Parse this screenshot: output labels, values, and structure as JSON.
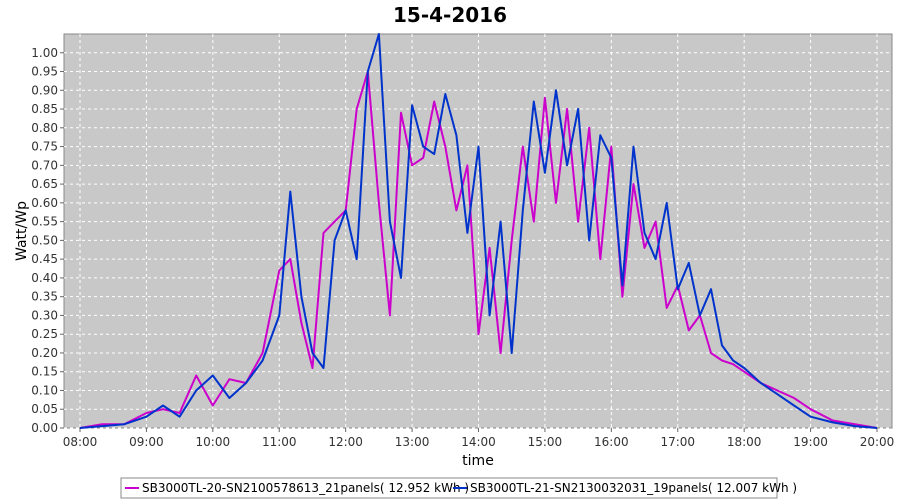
{
  "chart_data": {
    "type": "line",
    "title": "15-4-2016",
    "xlabel": "time",
    "ylabel": "Watt/Wp",
    "xlim": [
      "08:00",
      "20:00"
    ],
    "ylim": [
      0.0,
      1.05
    ],
    "x_ticks": [
      "08:00",
      "09:00",
      "10:00",
      "11:00",
      "12:00",
      "13:00",
      "14:00",
      "15:00",
      "16:00",
      "17:00",
      "18:00",
      "19:00",
      "20:00"
    ],
    "y_ticks": [
      "0.00",
      "0.05",
      "0.10",
      "0.15",
      "0.20",
      "0.25",
      "0.30",
      "0.35",
      "0.40",
      "0.45",
      "0.50",
      "0.55",
      "0.60",
      "0.65",
      "0.70",
      "0.75",
      "0.80",
      "0.85",
      "0.90",
      "0.95",
      "1.00"
    ],
    "grid": true,
    "legend_position": "bottom",
    "x": [
      "08:00",
      "08:20",
      "08:40",
      "09:00",
      "09:15",
      "09:30",
      "09:45",
      "10:00",
      "10:15",
      "10:30",
      "10:45",
      "11:00",
      "11:10",
      "11:20",
      "11:30",
      "11:40",
      "11:50",
      "12:00",
      "12:10",
      "12:20",
      "12:30",
      "12:40",
      "12:50",
      "13:00",
      "13:10",
      "13:20",
      "13:30",
      "13:40",
      "13:50",
      "14:00",
      "14:10",
      "14:20",
      "14:30",
      "14:40",
      "14:50",
      "15:00",
      "15:10",
      "15:20",
      "15:30",
      "15:40",
      "15:50",
      "16:00",
      "16:10",
      "16:20",
      "16:30",
      "16:40",
      "16:50",
      "17:00",
      "17:10",
      "17:20",
      "17:30",
      "17:40",
      "17:50",
      "18:00",
      "18:15",
      "18:30",
      "18:45",
      "19:00",
      "19:20",
      "19:40",
      "20:00"
    ],
    "series": [
      {
        "name": "SB3000TL-20-SN2100578613_21panels( 12.952 kWh )",
        "color": "#cc00cc",
        "values": [
          0.0,
          0.01,
          0.01,
          0.04,
          0.05,
          0.04,
          0.14,
          0.06,
          0.13,
          0.12,
          0.2,
          0.42,
          0.45,
          0.28,
          0.16,
          0.52,
          0.55,
          0.58,
          0.85,
          0.95,
          0.6,
          0.3,
          0.84,
          0.7,
          0.72,
          0.87,
          0.75,
          0.58,
          0.7,
          0.25,
          0.48,
          0.2,
          0.5,
          0.75,
          0.55,
          0.88,
          0.6,
          0.85,
          0.55,
          0.8,
          0.45,
          0.75,
          0.35,
          0.65,
          0.48,
          0.55,
          0.32,
          0.38,
          0.26,
          0.3,
          0.2,
          0.18,
          0.17,
          0.15,
          0.12,
          0.1,
          0.08,
          0.05,
          0.02,
          0.01,
          0.0
        ]
      },
      {
        "name": "SB3000TL-21-SN2130032031_19panels( 12.007 kWh )",
        "color": "#0033cc",
        "values": [
          0.0,
          0.005,
          0.01,
          0.03,
          0.06,
          0.03,
          0.1,
          0.14,
          0.08,
          0.12,
          0.18,
          0.3,
          0.63,
          0.35,
          0.2,
          0.16,
          0.5,
          0.58,
          0.45,
          0.95,
          1.05,
          0.55,
          0.4,
          0.86,
          0.75,
          0.73,
          0.89,
          0.78,
          0.52,
          0.75,
          0.3,
          0.55,
          0.2,
          0.58,
          0.87,
          0.68,
          0.9,
          0.7,
          0.85,
          0.5,
          0.78,
          0.72,
          0.38,
          0.75,
          0.52,
          0.45,
          0.6,
          0.37,
          0.44,
          0.3,
          0.37,
          0.22,
          0.18,
          0.16,
          0.12,
          0.09,
          0.06,
          0.03,
          0.015,
          0.005,
          0.0
        ]
      }
    ]
  }
}
